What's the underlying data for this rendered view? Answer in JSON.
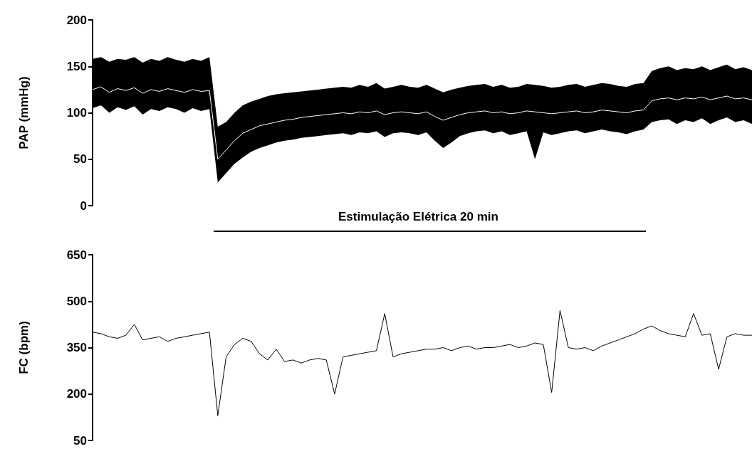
{
  "chart_data": [
    {
      "type": "line",
      "ylabel": "PAP (mmHg)",
      "annotations": [
        "Estimulação Elétrica 20 min"
      ],
      "categories": [
        null,
        null,
        null,
        null,
        null,
        null,
        null,
        null,
        null,
        null,
        null,
        null,
        null,
        null,
        null,
        null,
        null,
        null,
        null,
        null,
        null,
        null,
        null,
        null,
        null,
        null,
        null,
        null,
        null,
        null,
        null,
        null,
        null,
        null,
        null,
        null,
        null,
        null,
        null,
        null,
        null,
        null,
        null,
        null,
        null,
        null,
        null,
        null,
        null,
        null,
        null,
        null,
        null,
        null,
        null,
        null,
        null,
        null,
        null,
        null,
        null,
        null,
        null,
        null,
        null,
        null,
        null,
        null,
        null,
        null,
        null,
        null,
        null,
        null,
        null,
        null,
        null,
        null,
        null,
        null
      ],
      "series": [
        {
          "color": "#ffffff",
          "values": [
            125,
            128,
            122,
            126,
            124,
            127,
            121,
            125,
            123,
            126,
            124,
            122,
            125,
            123,
            124,
            50,
            60,
            70,
            78,
            82,
            86,
            88,
            90,
            92,
            93,
            95,
            96,
            97,
            98,
            99,
            100,
            99,
            101,
            100,
            102,
            98,
            100,
            101,
            100,
            99,
            101,
            96,
            92,
            95,
            98,
            100,
            101,
            102,
            100,
            101,
            99,
            100,
            102,
            101,
            100,
            99,
            100,
            101,
            102,
            100,
            101,
            103,
            102,
            101,
            100,
            102,
            103,
            113,
            115,
            116,
            114,
            116,
            115,
            117,
            114,
            116,
            118,
            115,
            116,
            114
          ],
          "upper": [
            158,
            160,
            155,
            158,
            157,
            160,
            154,
            158,
            156,
            160,
            157,
            155,
            158,
            156,
            160,
            85,
            90,
            100,
            108,
            112,
            115,
            118,
            120,
            121,
            122,
            123,
            124,
            125,
            126,
            127,
            128,
            127,
            130,
            128,
            132,
            126,
            128,
            130,
            128,
            127,
            130,
            126,
            122,
            125,
            127,
            129,
            130,
            131,
            128,
            130,
            127,
            128,
            131,
            130,
            129,
            127,
            128,
            130,
            131,
            128,
            130,
            132,
            131,
            129,
            128,
            131,
            132,
            145,
            148,
            150,
            146,
            148,
            147,
            150,
            146,
            149,
            152,
            147,
            149,
            146
          ],
          "lower": [
            105,
            108,
            100,
            106,
            103,
            107,
            98,
            104,
            102,
            106,
            104,
            100,
            105,
            102,
            104,
            25,
            35,
            45,
            52,
            58,
            62,
            65,
            68,
            70,
            71,
            73,
            74,
            75,
            76,
            77,
            78,
            76,
            79,
            78,
            80,
            74,
            78,
            79,
            78,
            76,
            79,
            70,
            62,
            68,
            75,
            78,
            80,
            81,
            78,
            80,
            76,
            78,
            80,
            50,
            79,
            76,
            78,
            80,
            81,
            78,
            80,
            82,
            80,
            79,
            77,
            80,
            82,
            90,
            92,
            93,
            88,
            92,
            90,
            94,
            88,
            92,
            95,
            90,
            92,
            88
          ]
        }
      ],
      "ylim": [
        0,
        200
      ],
      "yticks": [
        0,
        50,
        100,
        150,
        200
      ],
      "tick_labels": "y",
      "grid": false
    },
    {
      "type": "line",
      "ylabel": "FC (bpm)",
      "categories": [
        null,
        null,
        null,
        null,
        null,
        null,
        null,
        null,
        null,
        null,
        null,
        null,
        null,
        null,
        null,
        null,
        null,
        null,
        null,
        null,
        null,
        null,
        null,
        null,
        null,
        null,
        null,
        null,
        null,
        null,
        null,
        null,
        null,
        null,
        null,
        null,
        null,
        null,
        null,
        null,
        null,
        null,
        null,
        null,
        null,
        null,
        null,
        null,
        null,
        null,
        null,
        null,
        null,
        null,
        null,
        null,
        null,
        null,
        null,
        null,
        null,
        null,
        null,
        null,
        null,
        null,
        null,
        null,
        null,
        null,
        null,
        null,
        null,
        null,
        null,
        null,
        null,
        null,
        null,
        null
      ],
      "series": [
        {
          "color": "#000000",
          "values": [
            400,
            395,
            385,
            380,
            390,
            425,
            375,
            380,
            385,
            370,
            380,
            385,
            390,
            395,
            400,
            130,
            320,
            360,
            380,
            370,
            330,
            310,
            345,
            305,
            310,
            300,
            310,
            315,
            310,
            200,
            320,
            325,
            330,
            335,
            340,
            460,
            320,
            330,
            335,
            340,
            345,
            345,
            350,
            340,
            350,
            355,
            345,
            350,
            350,
            355,
            360,
            350,
            355,
            365,
            360,
            205,
            470,
            350,
            345,
            350,
            340,
            355,
            365,
            375,
            385,
            395,
            410,
            420,
            405,
            395,
            390,
            385,
            460,
            390,
            395,
            280,
            385,
            395,
            390,
            390
          ]
        }
      ],
      "ylim": [
        50,
        650
      ],
      "yticks": [
        50,
        200,
        350,
        500,
        650
      ],
      "tick_labels": "y",
      "grid": false
    }
  ]
}
